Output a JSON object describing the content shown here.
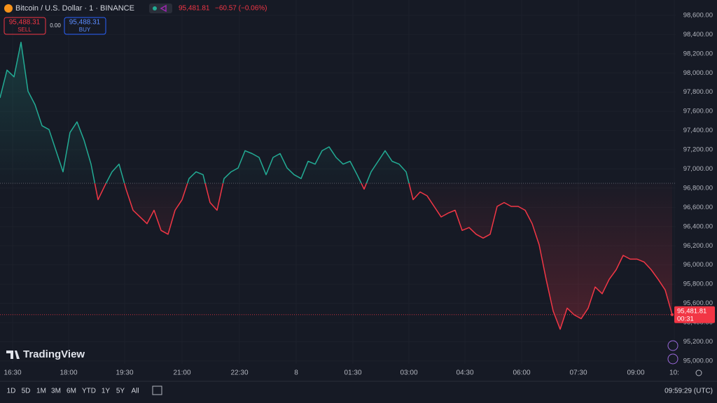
{
  "chart_data": {
    "type": "baseline",
    "title": "Bitcoin / U.S. Dollar · 1 · BINANCE",
    "values": [
      97740,
      98030,
      97960,
      98320,
      97810,
      97670,
      97450,
      97410,
      97190,
      96970,
      97380,
      97490,
      97300,
      97050,
      96680,
      96830,
      96970,
      97050,
      96790,
      96570,
      96500,
      96430,
      96570,
      96360,
      96320,
      96570,
      96680,
      96900,
      96970,
      96940,
      96650,
      96570,
      96900,
      96970,
      97010,
      97190,
      97160,
      97120,
      96940,
      97120,
      97160,
      97010,
      96940,
      96900,
      97080,
      97050,
      97190,
      97230,
      97120,
      97050,
      97080,
      96940,
      96790,
      96970,
      97080,
      97190,
      97080,
      97050,
      96970,
      96680,
      96760,
      96720,
      96610,
      96500,
      96540,
      96570,
      96360,
      96390,
      96320,
      96280,
      96320,
      96610,
      96650,
      96610,
      96610,
      96570,
      96430,
      96210,
      95850,
      95520,
      95330,
      95550,
      95480,
      95440,
      95550,
      95770,
      95700,
      95850,
      95950,
      96100,
      96060,
      96060,
      96030,
      95950,
      95850,
      95740,
      95481.81
    ],
    "baseline": 96850,
    "colors": {
      "above": "#22ab94",
      "below": "#f23645"
    },
    "xlim": [
      0,
      96.5
    ],
    "xticks": [
      {
        "value": 1.8,
        "label": "16:30"
      },
      {
        "value": 9.8,
        "label": "18:00"
      },
      {
        "value": 17.8,
        "label": "19:30"
      },
      {
        "value": 26.0,
        "label": "21:00"
      },
      {
        "value": 34.2,
        "label": "22:30"
      },
      {
        "value": 42.3,
        "label": "8"
      },
      {
        "value": 50.4,
        "label": "01:30"
      },
      {
        "value": 58.4,
        "label": "03:00"
      },
      {
        "value": 66.4,
        "label": "04:30"
      },
      {
        "value": 74.5,
        "label": "06:00"
      },
      {
        "value": 82.6,
        "label": "07:30"
      },
      {
        "value": 90.8,
        "label": "09:00"
      },
      {
        "value": 96.3,
        "label": "10:"
      }
    ],
    "ylim": [
      94970,
      98760
    ],
    "yticks": [
      {
        "value": 95000,
        "label": "95,000.00"
      },
      {
        "value": 95200,
        "label": "95,200.00"
      },
      {
        "value": 95400,
        "label": "95,400.00"
      },
      {
        "value": 95600,
        "label": "95,600.00"
      },
      {
        "value": 95800,
        "label": "95,800.00"
      },
      {
        "value": 96000,
        "label": "96,000.00"
      },
      {
        "value": 96200,
        "label": "96,200.00"
      },
      {
        "value": 96400,
        "label": "96,400.00"
      },
      {
        "value": 96600,
        "label": "96,600.00"
      },
      {
        "value": 96800,
        "label": "96,800.00"
      },
      {
        "value": 97000,
        "label": "97,000.00"
      },
      {
        "value": 97200,
        "label": "97,200.00"
      },
      {
        "value": 97400,
        "label": "97,400.00"
      },
      {
        "value": 97600,
        "label": "97,600.00"
      },
      {
        "value": 97800,
        "label": "97,800.00"
      },
      {
        "value": 98000,
        "label": "98,000.00"
      },
      {
        "value": 98200,
        "label": "98,200.00"
      },
      {
        "value": 98400,
        "label": "98,400.00"
      },
      {
        "value": 98600,
        "label": "98,600.00"
      }
    ],
    "grid": true
  },
  "header": {
    "last": "95,481.81",
    "change": "−60.57 (−0.06%)",
    "sell": {
      "price": "95,488.31",
      "label": "SELL"
    },
    "spread": "0.00",
    "buy": {
      "price": "95,488.31",
      "label": "BUY"
    }
  },
  "price_tag": {
    "price": "95,481.81",
    "countdown": "00:31"
  },
  "brand": "TradingView",
  "toolbar": {
    "ranges": [
      "1D",
      "5D",
      "1M",
      "3M",
      "6M",
      "YTD",
      "1Y",
      "5Y",
      "All"
    ],
    "clock": "09:59:29 (UTC)"
  }
}
